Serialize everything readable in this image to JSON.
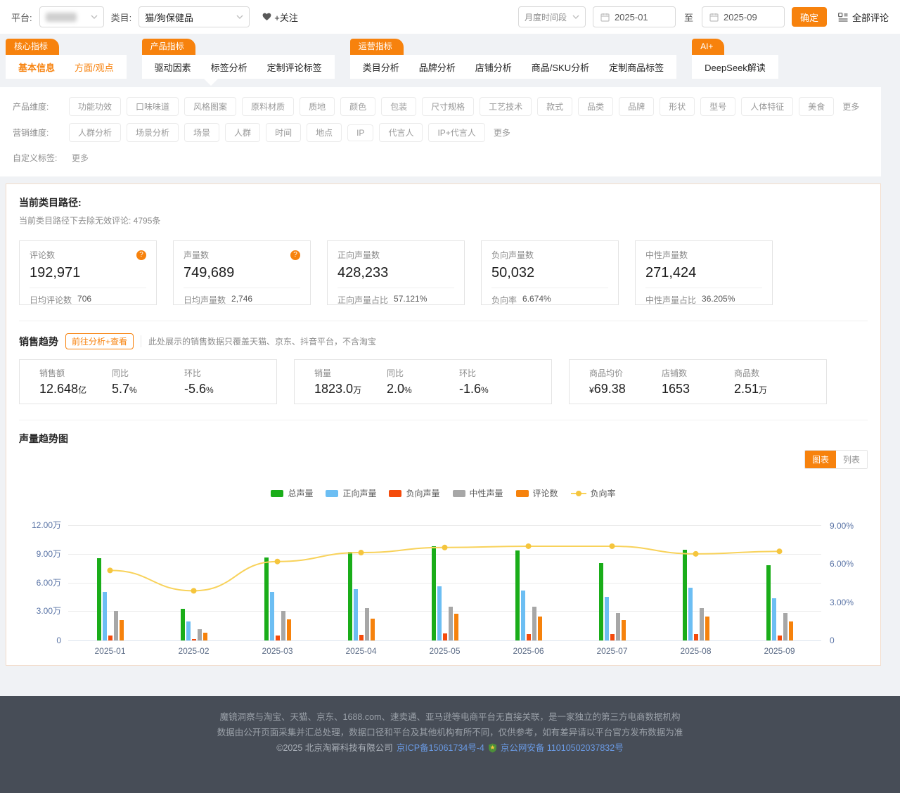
{
  "topbar": {
    "platform_label": "平台:",
    "category_label": "类目:",
    "category_value": "猫/狗保健品",
    "follow_label": "+关注",
    "period_value": "月度时间段",
    "date_from": "2025-01",
    "range_separator": "至",
    "date_to": "2025-09",
    "confirm_label": "确定",
    "all_comments_label": "全部评论"
  },
  "nav": {
    "groups": [
      {
        "tag": "核心指标",
        "items": [
          {
            "label": "基本信息"
          },
          {
            "label": "方面/观点"
          }
        ]
      },
      {
        "tag": "产品指标",
        "items": [
          {
            "label": "驱动因素"
          },
          {
            "label": "标签分析"
          },
          {
            "label": "定制评论标签"
          }
        ]
      },
      {
        "tag": "运营指标",
        "items": [
          {
            "label": "类目分析"
          },
          {
            "label": "品牌分析"
          },
          {
            "label": "店铺分析"
          },
          {
            "label": "商品/SKU分析"
          },
          {
            "label": "定制商品标签"
          }
        ]
      },
      {
        "tag": "AI+",
        "items": [
          {
            "label": "DeepSeek解读"
          }
        ]
      }
    ]
  },
  "filters": {
    "product_label": "产品维度:",
    "product_tags": [
      "功能功效",
      "口味味道",
      "风格图案",
      "原料材质",
      "质地",
      "颜色",
      "包装",
      "尺寸规格",
      "工艺技术",
      "款式",
      "品类",
      "品牌",
      "形状",
      "型号",
      "人体特征",
      "美食"
    ],
    "marketing_label": "营销维度:",
    "marketing_tags": [
      "人群分析",
      "场景分析",
      "场景",
      "人群",
      "时间",
      "地点",
      "IP",
      "代言人",
      "IP+代言人"
    ],
    "custom_label": "自定义标签:",
    "more_label": "更多"
  },
  "category_path": {
    "title": "当前类目路径:",
    "subtitle": "当前类目路径下去除无效评论: 4795条"
  },
  "stat_cards": [
    {
      "label": "评论数",
      "value": "192,971",
      "sub_label": "日均评论数",
      "sub_value": "706"
    },
    {
      "label": "声量数",
      "value": "749,689",
      "sub_label": "日均声量数",
      "sub_value": "2,746"
    },
    {
      "label": "正向声量数",
      "value": "428,233",
      "sub_label": "正向声量占比",
      "sub_value": "57.121%"
    },
    {
      "label": "负向声量数",
      "value": "50,032",
      "sub_label": "负向率",
      "sub_value": "6.674%"
    },
    {
      "label": "中性声量数",
      "value": "271,424",
      "sub_label": "中性声量占比",
      "sub_value": "36.205%"
    }
  ],
  "sales": {
    "title": "销售趋势",
    "button_label": "前往分析+查看",
    "note": "此处展示的销售数据只覆盖天猫、京东、抖音平台，不含淘宝",
    "cards": [
      {
        "metrics": [
          {
            "label": "销售额",
            "prefix": "",
            "value": "12.648",
            "unit": "亿"
          },
          {
            "label": "同比",
            "prefix": "",
            "value": "5.7",
            "unit": "%"
          },
          {
            "label": "环比",
            "prefix": "",
            "value": "-5.6",
            "unit": "%"
          }
        ]
      },
      {
        "metrics": [
          {
            "label": "销量",
            "prefix": "",
            "value": "1823.0",
            "unit": "万"
          },
          {
            "label": "同比",
            "prefix": "",
            "value": "2.0",
            "unit": "%"
          },
          {
            "label": "环比",
            "prefix": "",
            "value": "-1.6",
            "unit": "%"
          }
        ]
      },
      {
        "metrics": [
          {
            "label": "商品均价",
            "prefix": "¥",
            "value": "69.38",
            "unit": ""
          },
          {
            "label": "店铺数",
            "prefix": "",
            "value": "1653",
            "unit": ""
          },
          {
            "label": "商品数",
            "prefix": "",
            "value": "2.51",
            "unit": "万"
          }
        ]
      }
    ]
  },
  "volume_section": {
    "title": "声量趋势图",
    "toggle_chart": "图表",
    "toggle_list": "列表"
  },
  "chart_data": {
    "type": "bar+line",
    "title": "声量趋势图",
    "categories": [
      "2025-01",
      "2025-02",
      "2025-03",
      "2025-04",
      "2025-05",
      "2025-06",
      "2025-07",
      "2025-08",
      "2025-09"
    ],
    "value_unit": "万",
    "series": [
      {
        "name": "总声量",
        "color": "#1aad19",
        "values": [
          8.6,
          3.3,
          8.7,
          9.3,
          9.9,
          9.4,
          8.1,
          9.5,
          7.9
        ]
      },
      {
        "name": "正向声量",
        "color": "#6cbef3",
        "values": [
          5.1,
          2.0,
          5.1,
          5.4,
          5.7,
          5.2,
          4.6,
          5.5,
          4.4
        ]
      },
      {
        "name": "负向声量",
        "color": "#f44b0c",
        "values": [
          0.5,
          0.15,
          0.55,
          0.6,
          0.75,
          0.7,
          0.7,
          0.7,
          0.5
        ]
      },
      {
        "name": "中性声量",
        "color": "#a7a7a7",
        "values": [
          3.1,
          1.2,
          3.1,
          3.4,
          3.5,
          3.5,
          2.9,
          3.4,
          2.9
        ]
      },
      {
        "name": "评论数",
        "color": "#f6820c",
        "values": [
          2.1,
          0.8,
          2.2,
          2.3,
          2.8,
          2.5,
          2.1,
          2.5,
          2.0
        ]
      }
    ],
    "line": {
      "name": "负向率",
      "axis": "right",
      "unit": "%",
      "color": "#f8d25a",
      "dot_color": "#f5c53d",
      "values": [
        5.5,
        3.9,
        6.2,
        6.9,
        7.3,
        7.4,
        7.4,
        6.8,
        7.0
      ]
    },
    "left_axis": {
      "max": 12,
      "ticks": [
        {
          "v": 0,
          "label": "0"
        },
        {
          "v": 3,
          "label": "3.00万"
        },
        {
          "v": 6,
          "label": "6.00万"
        },
        {
          "v": 9,
          "label": "9.00万"
        },
        {
          "v": 12,
          "label": "12.00万"
        }
      ]
    },
    "right_axis": {
      "max": 9,
      "ticks": [
        {
          "v": 0,
          "label": "0"
        },
        {
          "v": 3,
          "label": "3.00%"
        },
        {
          "v": 6,
          "label": "6.00%"
        },
        {
          "v": 9,
          "label": "9.00%"
        }
      ]
    },
    "grid": true,
    "legend_position": "top-center",
    "legend": [
      {
        "name": "总声量",
        "color": "#1aad19",
        "type": "bar"
      },
      {
        "name": "正向声量",
        "color": "#6cbef3",
        "type": "bar"
      },
      {
        "name": "负向声量",
        "color": "#f44b0c",
        "type": "bar"
      },
      {
        "name": "中性声量",
        "color": "#a7a7a7",
        "type": "bar"
      },
      {
        "name": "评论数",
        "color": "#f6820c",
        "type": "bar"
      },
      {
        "name": "负向率",
        "color": "#f8d25a",
        "type": "line"
      }
    ]
  },
  "colors": {
    "brand_orange": "#f7820d",
    "panel_border": "#f2dccb",
    "axis_label": "#5a74a6",
    "footer_bg": "#474d57",
    "footer_link": "#6a9be6"
  },
  "footer": {
    "line1": "魔镜洞察与淘宝、天猫、京东、1688.com、速卖通、亚马逊等电商平台无直接关联，是一家独立的第三方电商数据机构",
    "line2": "数据由公开页面采集并汇总处理，数据口径和平台及其他机构有所不同，仅供参考，如有差异请以平台官方发布数据为准",
    "copyright": "©2025 北京淘幂科技有限公司",
    "icp_link": "京ICP备15061734号-4",
    "security_link": "京公网安备 11010502037832号"
  }
}
